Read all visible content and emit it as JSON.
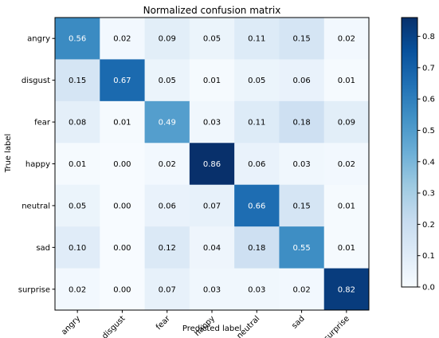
{
  "chart_data": {
    "type": "heatmap",
    "title": "Normalized confusion matrix",
    "xlabel": "Predicted label",
    "ylabel": "True label",
    "x_categories": [
      "angry",
      "disgust",
      "fear",
      "happy",
      "neutral",
      "sad",
      "surprise"
    ],
    "y_categories": [
      "angry",
      "disgust",
      "fear",
      "happy",
      "neutral",
      "sad",
      "surprise"
    ],
    "matrix": [
      [
        0.56,
        0.02,
        0.09,
        0.05,
        0.11,
        0.15,
        0.02
      ],
      [
        0.15,
        0.67,
        0.05,
        0.01,
        0.05,
        0.06,
        0.01
      ],
      [
        0.08,
        0.01,
        0.49,
        0.03,
        0.11,
        0.18,
        0.09
      ],
      [
        0.01,
        0.0,
        0.02,
        0.86,
        0.06,
        0.03,
        0.02
      ],
      [
        0.05,
        0.0,
        0.06,
        0.07,
        0.66,
        0.15,
        0.01
      ],
      [
        0.1,
        0.0,
        0.12,
        0.04,
        0.18,
        0.55,
        0.01
      ],
      [
        0.02,
        0.0,
        0.07,
        0.03,
        0.03,
        0.02,
        0.82
      ]
    ],
    "value_format": "0.00",
    "colormap": "Blues",
    "colormap_stops": [
      "#f7fbff",
      "#deebf7",
      "#c6dbef",
      "#9ecae1",
      "#6baed6",
      "#4292c6",
      "#2171b5",
      "#08519c",
      "#08306b"
    ],
    "colorbar": {
      "range": [
        0.0,
        0.86
      ],
      "ticks": [
        0.0,
        0.1,
        0.2,
        0.3,
        0.4,
        0.5,
        0.6,
        0.7,
        0.8
      ],
      "tick_labels": [
        "0.0",
        "0.1",
        "0.2",
        "0.3",
        "0.4",
        "0.5",
        "0.6",
        "0.7",
        "0.8"
      ]
    },
    "text_color_threshold": 0.43,
    "grid": false
  }
}
